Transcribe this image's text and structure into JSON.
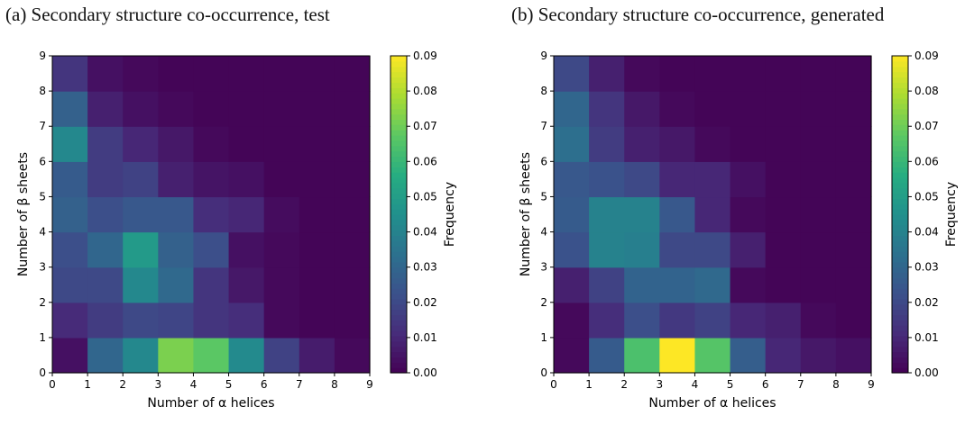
{
  "chart_data": [
    {
      "type": "heatmap",
      "title": "(a) Secondary structure co-occurrence, test",
      "xlabel": "Number of α helices",
      "ylabel": "Number of β sheets",
      "colorbar_label": "Frequency",
      "colormap": "viridis",
      "x_ticks": [
        "0",
        "1",
        "2",
        "3",
        "4",
        "5",
        "6",
        "7",
        "8",
        "9"
      ],
      "y_ticks": [
        "0",
        "1",
        "2",
        "3",
        "4",
        "5",
        "6",
        "7",
        "8",
        "9"
      ],
      "colorbar_ticks": [
        "0.00",
        "0.01",
        "0.02",
        "0.03",
        "0.04",
        "0.05",
        "0.06",
        "0.07",
        "0.08",
        "0.09"
      ],
      "vmin": 0.0,
      "vmax": 0.09,
      "rows_bottom_to_top": [
        [
          0.004,
          0.03,
          0.042,
          0.072,
          0.067,
          0.043,
          0.018,
          0.007,
          0.002
        ],
        [
          0.011,
          0.016,
          0.02,
          0.019,
          0.014,
          0.012,
          0.002,
          0.001,
          0.001
        ],
        [
          0.02,
          0.02,
          0.042,
          0.031,
          0.014,
          0.006,
          0.002,
          0.001,
          0.001
        ],
        [
          0.022,
          0.03,
          0.049,
          0.028,
          0.022,
          0.004,
          0.002,
          0.001,
          0.001
        ],
        [
          0.028,
          0.022,
          0.025,
          0.025,
          0.012,
          0.01,
          0.003,
          0.001,
          0.001
        ],
        [
          0.026,
          0.016,
          0.018,
          0.008,
          0.005,
          0.004,
          0.001,
          0.001,
          0.001
        ],
        [
          0.042,
          0.016,
          0.01,
          0.006,
          0.002,
          0.001,
          0.001,
          0.001,
          0.001
        ],
        [
          0.028,
          0.008,
          0.004,
          0.002,
          0.001,
          0.001,
          0.001,
          0.001,
          0.001
        ],
        [
          0.014,
          0.004,
          0.002,
          0.001,
          0.001,
          0.001,
          0.001,
          0.001,
          0.001
        ]
      ]
    },
    {
      "type": "heatmap",
      "title": "(b) Secondary structure co-occurrence, generated",
      "xlabel": "Number of α helices",
      "ylabel": "Number of β sheets",
      "colorbar_label": "Frequency",
      "colormap": "viridis",
      "x_ticks": [
        "0",
        "1",
        "2",
        "3",
        "4",
        "5",
        "6",
        "7",
        "8",
        "9"
      ],
      "y_ticks": [
        "0",
        "1",
        "2",
        "3",
        "4",
        "5",
        "6",
        "7",
        "8",
        "9"
      ],
      "colorbar_ticks": [
        "0.00",
        "0.01",
        "0.02",
        "0.03",
        "0.04",
        "0.05",
        "0.06",
        "0.07",
        "0.08",
        "0.09"
      ],
      "vmin": 0.0,
      "vmax": 0.09,
      "rows_bottom_to_top": [
        [
          0.002,
          0.026,
          0.064,
          0.09,
          0.066,
          0.027,
          0.01,
          0.006,
          0.004
        ],
        [
          0.002,
          0.012,
          0.022,
          0.015,
          0.018,
          0.01,
          0.008,
          0.002,
          0.001
        ],
        [
          0.008,
          0.018,
          0.029,
          0.029,
          0.031,
          0.002,
          0.001,
          0.001,
          0.001
        ],
        [
          0.023,
          0.04,
          0.039,
          0.02,
          0.02,
          0.008,
          0.001,
          0.001,
          0.001
        ],
        [
          0.026,
          0.04,
          0.04,
          0.025,
          0.01,
          0.002,
          0.001,
          0.001,
          0.001
        ],
        [
          0.025,
          0.023,
          0.02,
          0.01,
          0.01,
          0.004,
          0.001,
          0.001,
          0.001
        ],
        [
          0.033,
          0.016,
          0.008,
          0.006,
          0.002,
          0.001,
          0.001,
          0.001,
          0.001
        ],
        [
          0.03,
          0.014,
          0.006,
          0.002,
          0.001,
          0.001,
          0.001,
          0.001,
          0.001
        ],
        [
          0.02,
          0.008,
          0.002,
          0.001,
          0.001,
          0.001,
          0.001,
          0.001,
          0.001
        ]
      ]
    }
  ]
}
